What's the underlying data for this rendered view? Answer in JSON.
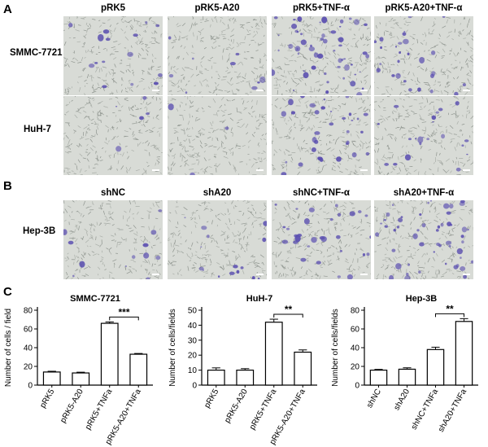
{
  "panels": {
    "A": {
      "letter": "A",
      "columns": [
        "pRK5",
        "pRK5-A20",
        "pRK5+TNF-α",
        "pRK5-A20+TNF-α"
      ],
      "rows": [
        "SMMC-7721",
        "HuH-7"
      ]
    },
    "B": {
      "letter": "B",
      "columns": [
        "shNC",
        "shA20",
        "shNC+TNF-α",
        "shA20+TNF-α"
      ],
      "rows": [
        "Hep-3B"
      ]
    },
    "C": {
      "letter": "C"
    }
  },
  "micro_density": {
    "A_SMMC-7721": [
      0.25,
      0.15,
      0.9,
      0.45
    ],
    "A_HuH-7": [
      0.08,
      0.05,
      0.55,
      0.35
    ],
    "B_Hep-3B": [
      0.2,
      0.25,
      0.5,
      0.85
    ]
  },
  "colors": {
    "bar_fill": "#ffffff",
    "stain": "#5b4fb0",
    "background_field": "#d8dbd6"
  },
  "chart_data": [
    {
      "type": "bar",
      "title": "SMMC-7721",
      "ylabel": "Number of cells / field",
      "categories": [
        "pRK5",
        "pRK5-A20",
        "pRK5+TNFa",
        "pRK5-A20+TNFa"
      ],
      "values": [
        14,
        13,
        66,
        33
      ],
      "errors": [
        0.8,
        0.8,
        1.5,
        0.8
      ],
      "ylim": [
        0,
        80
      ],
      "yticks": [
        0,
        20,
        40,
        60,
        80
      ],
      "significance": {
        "from": 2,
        "to": 3,
        "label": "***"
      }
    },
    {
      "type": "bar",
      "title": "HuH-7",
      "ylabel": "Number of cells/fields",
      "categories": [
        "pRK5",
        "pRK5-A20",
        "pRK5+TNFa",
        "pRK5-A20+TNFa"
      ],
      "values": [
        10,
        10,
        42,
        22
      ],
      "errors": [
        1.5,
        1,
        2,
        1.5
      ],
      "ylim": [
        0,
        50
      ],
      "yticks": [
        0,
        10,
        20,
        30,
        40,
        50
      ],
      "significance": {
        "from": 2,
        "to": 3,
        "label": "**"
      }
    },
    {
      "type": "bar",
      "title": "Hep-3B",
      "ylabel": "Number of cells/fields",
      "categories": [
        "shNC",
        "shA20",
        "shNC+TNFa",
        "shA20+TNFa"
      ],
      "values": [
        16,
        17,
        38,
        68
      ],
      "errors": [
        0.8,
        1.5,
        2.5,
        3
      ],
      "ylim": [
        0,
        80
      ],
      "yticks": [
        0,
        20,
        40,
        60,
        80
      ],
      "significance": {
        "from": 2,
        "to": 3,
        "label": "**"
      }
    }
  ]
}
